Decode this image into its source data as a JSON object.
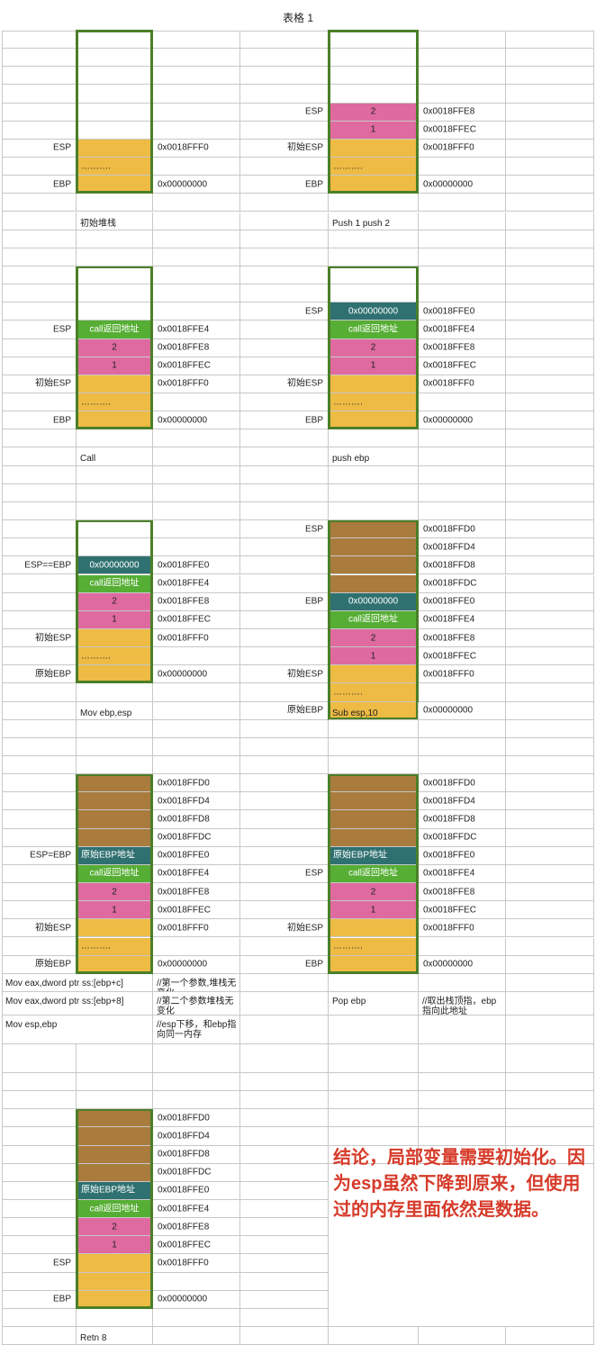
{
  "title": "表格 1",
  "colors": {
    "yellow": "#eebb44",
    "pink": "#de6aa0",
    "green": "#56ae34",
    "teal": "#2f7070",
    "brown": "#a97b3d",
    "border": "#4b7f28",
    "conclusion": "#d63b2a"
  },
  "panels": [
    {
      "rows": [
        {
          "label": "",
          "cell": "",
          "color": "white",
          "addr": ""
        },
        {
          "label": "",
          "cell": "",
          "color": "white",
          "addr": ""
        },
        {
          "label": "",
          "cell": "",
          "color": "white",
          "addr": ""
        },
        {
          "label": "",
          "cell": "",
          "color": "white",
          "addr": ""
        },
        {
          "label": "",
          "cell": "",
          "color": "white",
          "addr": ""
        },
        {
          "label": "",
          "cell": "",
          "color": "white",
          "addr": ""
        },
        {
          "label": "ESP",
          "cell": "",
          "color": "yellow",
          "addr": "0x0018FFF0"
        },
        {
          "label": "",
          "cell": "……….",
          "color": "yellow",
          "addr": ""
        },
        {
          "label": "EBP",
          "cell": "",
          "color": "yellow",
          "addr": "0x00000000"
        }
      ],
      "caption": "初始堆栈"
    },
    {
      "rows": [
        {
          "label": "",
          "cell": "",
          "color": "white",
          "addr": ""
        },
        {
          "label": "",
          "cell": "",
          "color": "white",
          "addr": ""
        },
        {
          "label": "",
          "cell": "",
          "color": "white",
          "addr": ""
        },
        {
          "label": "",
          "cell": "",
          "color": "white",
          "addr": ""
        },
        {
          "label": "ESP",
          "cell": "2",
          "color": "pink",
          "addr": "0x0018FFE8"
        },
        {
          "label": "",
          "cell": "1",
          "color": "pink",
          "addr": "0x0018FFEC"
        },
        {
          "label": "初始ESP",
          "cell": "",
          "color": "yellow",
          "addr": "0x0018FFF0"
        },
        {
          "label": "",
          "cell": "……….",
          "color": "yellow",
          "addr": ""
        },
        {
          "label": "EBP",
          "cell": "",
          "color": "yellow",
          "addr": "0x00000000"
        }
      ],
      "caption": "Push 1 push 2"
    },
    {
      "rows": [
        {
          "label": "",
          "cell": "",
          "color": "white",
          "addr": ""
        },
        {
          "label": "",
          "cell": "",
          "color": "white",
          "addr": ""
        },
        {
          "label": "",
          "cell": "",
          "color": "white",
          "addr": ""
        },
        {
          "label": "ESP",
          "cell": "call返回地址",
          "color": "green",
          "addr": "0x0018FFE4"
        },
        {
          "label": "",
          "cell": "2",
          "color": "pink",
          "addr": "0x0018FFE8"
        },
        {
          "label": "",
          "cell": "1",
          "color": "pink",
          "addr": "0x0018FFEC"
        },
        {
          "label": "初始ESP",
          "cell": "",
          "color": "yellow",
          "addr": "0x0018FFF0"
        },
        {
          "label": "",
          "cell": "……….",
          "color": "yellow",
          "addr": ""
        },
        {
          "label": "EBP",
          "cell": "",
          "color": "yellow",
          "addr": "0x00000000"
        }
      ],
      "caption": "Call"
    },
    {
      "rows": [
        {
          "label": "",
          "cell": "",
          "color": "white",
          "addr": ""
        },
        {
          "label": "",
          "cell": "",
          "color": "white",
          "addr": ""
        },
        {
          "label": "ESP",
          "cell": "0x00000000",
          "color": "teal",
          "addr": "0x0018FFE0"
        },
        {
          "label": "",
          "cell": "call返回地址",
          "color": "green",
          "addr": "0x0018FFE4"
        },
        {
          "label": "",
          "cell": "2",
          "color": "pink",
          "addr": "0x0018FFE8"
        },
        {
          "label": "",
          "cell": "1",
          "color": "pink",
          "addr": "0x0018FFEC"
        },
        {
          "label": "初始ESP",
          "cell": "",
          "color": "yellow",
          "addr": "0x0018FFF0"
        },
        {
          "label": "",
          "cell": "……….",
          "color": "yellow",
          "addr": ""
        },
        {
          "label": "EBP",
          "cell": "",
          "color": "yellow",
          "addr": "0x00000000"
        }
      ],
      "caption": "push ebp"
    },
    {
      "rows": [
        {
          "label": "",
          "cell": "",
          "color": "white",
          "addr": ""
        },
        {
          "label": "",
          "cell": "",
          "color": "white",
          "addr": ""
        },
        {
          "label": "ESP==EBP",
          "cell": "0x00000000",
          "color": "teal",
          "addr": "0x0018FFE0"
        },
        {
          "label": "",
          "cell": "call返回地址",
          "color": "green",
          "addr": "0x0018FFE4"
        },
        {
          "label": "",
          "cell": "2",
          "color": "pink",
          "addr": "0x0018FFE8"
        },
        {
          "label": "",
          "cell": "1",
          "color": "pink",
          "addr": "0x0018FFEC"
        },
        {
          "label": "初始ESP",
          "cell": "",
          "color": "yellow",
          "addr": "0x0018FFF0"
        },
        {
          "label": "",
          "cell": "……….",
          "color": "yellow",
          "addr": ""
        },
        {
          "label": "原始EBP",
          "cell": "",
          "color": "yellow",
          "addr": "0x00000000"
        }
      ],
      "caption": "Mov  ebp,esp"
    },
    {
      "rows": [
        {
          "label": "ESP",
          "cell": "",
          "color": "brown",
          "addr": "0x0018FFD0"
        },
        {
          "label": "",
          "cell": "",
          "color": "brown",
          "addr": "0x0018FFD4"
        },
        {
          "label": "",
          "cell": "",
          "color": "brown",
          "addr": "0x0018FFD8"
        },
        {
          "label": "",
          "cell": "",
          "color": "brown",
          "addr": "0x0018FFDC"
        },
        {
          "label": "EBP",
          "cell": "0x00000000",
          "color": "teal",
          "addr": "0x0018FFE0"
        },
        {
          "label": "",
          "cell": "call返回地址",
          "color": "green",
          "addr": "0x0018FFE4"
        },
        {
          "label": "",
          "cell": "2",
          "color": "pink",
          "addr": "0x0018FFE8"
        },
        {
          "label": "",
          "cell": "1",
          "color": "pink",
          "addr": "0x0018FFEC"
        },
        {
          "label": "初始ESP",
          "cell": "",
          "color": "yellow",
          "addr": "0x0018FFF0"
        },
        {
          "label": "",
          "cell": "……….",
          "color": "yellow",
          "addr": ""
        },
        {
          "label": "原始EBP",
          "cell": "",
          "color": "yellow",
          "addr": "0x00000000"
        }
      ],
      "caption": "Sub esp,10"
    },
    {
      "rows": [
        {
          "label": "",
          "cell": "",
          "color": "brown",
          "addr": "0x0018FFD0"
        },
        {
          "label": "",
          "cell": "",
          "color": "brown",
          "addr": "0x0018FFD4"
        },
        {
          "label": "",
          "cell": "",
          "color": "brown",
          "addr": "0x0018FFD8"
        },
        {
          "label": "",
          "cell": "",
          "color": "brown",
          "addr": "0x0018FFDC"
        },
        {
          "label": "ESP=EBP",
          "cell": "原始EBP地址",
          "color": "teal",
          "addr": "0x0018FFE0"
        },
        {
          "label": "",
          "cell": "call返回地址",
          "color": "green",
          "addr": "0x0018FFE4"
        },
        {
          "label": "",
          "cell": "2",
          "color": "pink",
          "addr": "0x0018FFE8"
        },
        {
          "label": "",
          "cell": "1",
          "color": "pink",
          "addr": "0x0018FFEC"
        },
        {
          "label": "初始ESP",
          "cell": "",
          "color": "yellow",
          "addr": "0x0018FFF0"
        },
        {
          "label": "",
          "cell": "……….",
          "color": "yellow",
          "addr": ""
        },
        {
          "label": "原始EBP",
          "cell": "",
          "color": "yellow",
          "addr": "0x00000000"
        }
      ],
      "caption": ""
    },
    {
      "rows": [
        {
          "label": "",
          "cell": "",
          "color": "brown",
          "addr": "0x0018FFD0"
        },
        {
          "label": "",
          "cell": "",
          "color": "brown",
          "addr": "0x0018FFD4"
        },
        {
          "label": "",
          "cell": "",
          "color": "brown",
          "addr": "0x0018FFD8"
        },
        {
          "label": "",
          "cell": "",
          "color": "brown",
          "addr": "0x0018FFDC"
        },
        {
          "label": "",
          "cell": "原始EBP地址",
          "color": "teal",
          "addr": "0x0018FFE0"
        },
        {
          "label": "ESP",
          "cell": "call返回地址",
          "color": "green",
          "addr": "0x0018FFE4"
        },
        {
          "label": "",
          "cell": "2",
          "color": "pink",
          "addr": "0x0018FFE8"
        },
        {
          "label": "",
          "cell": "1",
          "color": "pink",
          "addr": "0x0018FFEC"
        },
        {
          "label": "初始ESP",
          "cell": "",
          "color": "yellow",
          "addr": "0x0018FFF0"
        },
        {
          "label": "",
          "cell": "……….",
          "color": "yellow",
          "addr": ""
        },
        {
          "label": "EBP",
          "cell": "",
          "color": "yellow",
          "addr": "0x00000000"
        }
      ],
      "caption": ""
    },
    {
      "rows": [
        {
          "label": "",
          "cell": "",
          "color": "brown",
          "addr": "0x0018FFD0"
        },
        {
          "label": "",
          "cell": "",
          "color": "brown",
          "addr": "0x0018FFD4"
        },
        {
          "label": "",
          "cell": "",
          "color": "brown",
          "addr": "0x0018FFD8"
        },
        {
          "label": "",
          "cell": "",
          "color": "brown",
          "addr": "0x0018FFDC"
        },
        {
          "label": "",
          "cell": "原始EBP地址",
          "color": "teal",
          "addr": "0x0018FFE0"
        },
        {
          "label": "",
          "cell": "call返回地址",
          "color": "green",
          "addr": "0x0018FFE4"
        },
        {
          "label": "",
          "cell": "2",
          "color": "pink",
          "addr": "0x0018FFE8"
        },
        {
          "label": "",
          "cell": "1",
          "color": "pink",
          "addr": "0x0018FFEC"
        },
        {
          "label": "ESP",
          "cell": "",
          "color": "yellow",
          "addr": "0x0018FFF0"
        },
        {
          "label": "",
          "cell": "",
          "color": "yellow",
          "addr": ""
        },
        {
          "label": "EBP",
          "cell": "",
          "color": "yellow",
          "addr": "0x00000000"
        }
      ],
      "caption": "Retn 8"
    }
  ],
  "notes": [
    {
      "instr": "Mov eax,dword ptr ss:[ebp+c]",
      "comment": "//第一个参数,堆栈无变化",
      "instr2": "",
      "comment2": ""
    },
    {
      "instr": "Mov eax,dword ptr ss:[ebp+8]",
      "comment": "//第二个参数堆栈无变化",
      "instr2": "Pop ebp",
      "comment2": "//取出栈顶指，ebp指向此地址"
    },
    {
      "instr": "Mov esp,ebp",
      "comment": "//esp下移，和ebp指向同一内存",
      "instr2": "",
      "comment2": ""
    }
  ],
  "conclusion": "结论，局部变量需要初始化。因为esp虽然下降到原来，但使用过的内存里面依然是数据。"
}
